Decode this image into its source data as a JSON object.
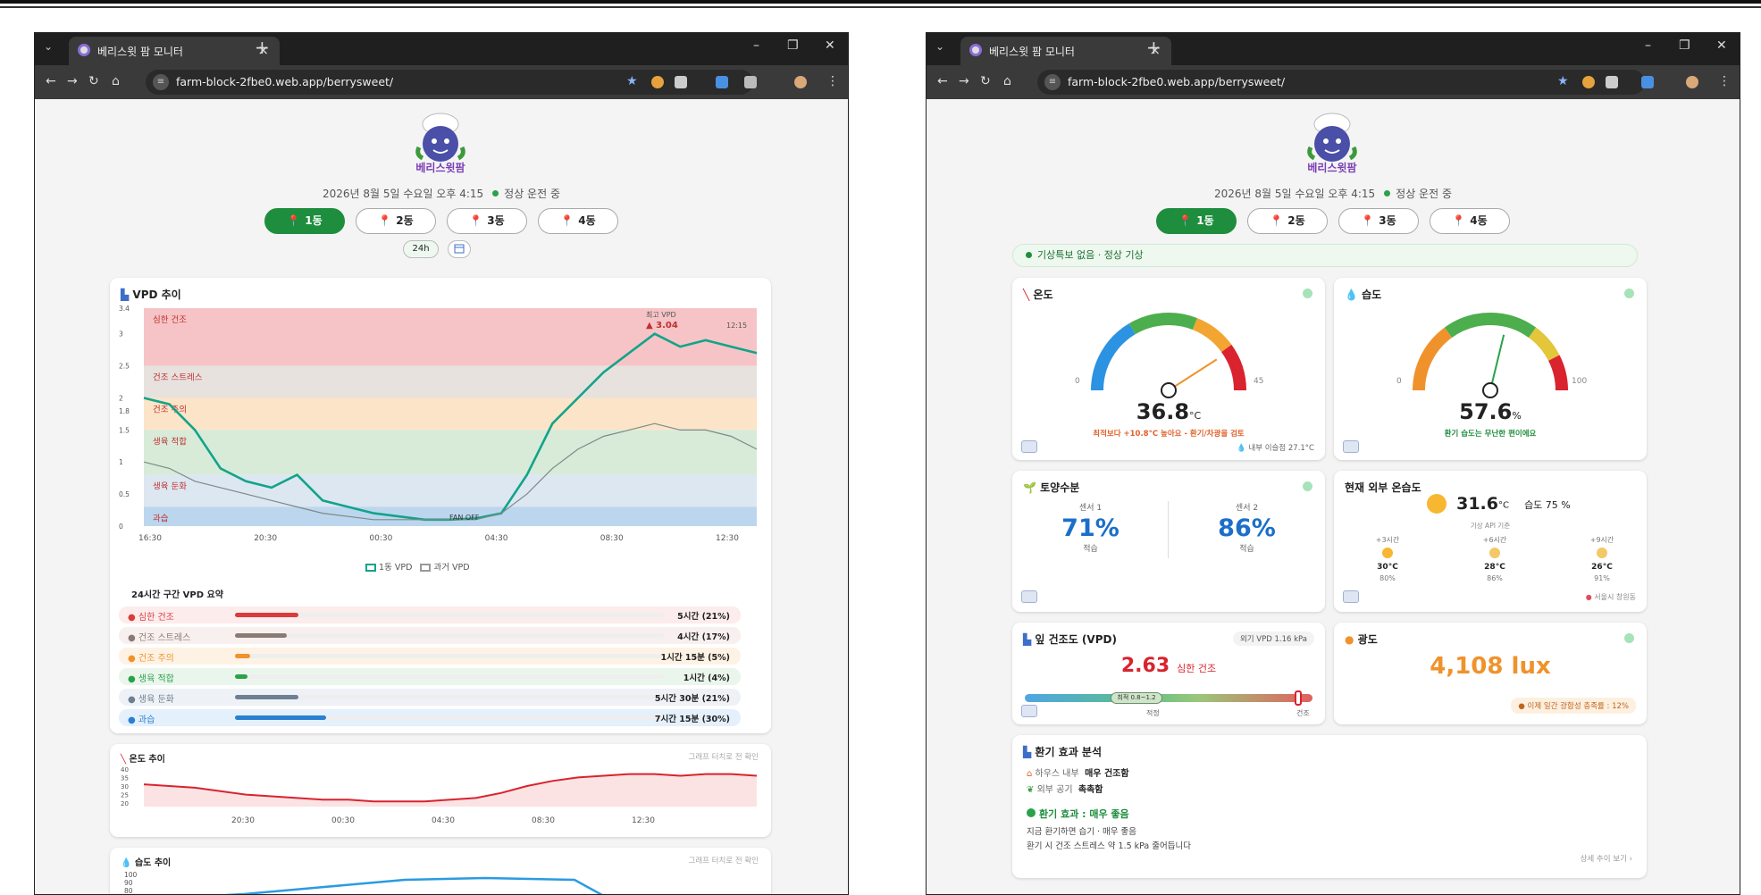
{
  "browser": {
    "tab_title": "베리스윗 팜 모니터",
    "url": "farm-block-2fbe0.web.app/berrysweet/"
  },
  "header": {
    "logo_text": "베리스윗팜",
    "date": "2026년 8월 5일 수요일 오후 4:15",
    "status": "정상 운전 중",
    "buildings": [
      "1동",
      "2동",
      "3동",
      "4동"
    ],
    "active_building": "1동"
  },
  "left": {
    "range_button": "24h",
    "vpd_card": {
      "title": "VPD 추이"
    },
    "chart_data": {
      "type": "line",
      "title": "VPD 추이",
      "x_ticks": [
        "16:30",
        "20:30",
        "00:30",
        "04:30",
        "08:30",
        "12:30"
      ],
      "ylim": [
        0,
        3.4
      ],
      "y_ticks": [
        "0",
        "0.5",
        "1",
        "1.5",
        "1.8",
        "2",
        "2.5",
        "3",
        "3.4"
      ],
      "zones": [
        {
          "label": "심한 건조",
          "from": 2.5,
          "to": 3.4,
          "color": "#f6c4c6"
        },
        {
          "label": "건조 스트레스",
          "from": 2.0,
          "to": 2.5,
          "color": "#e7e2de"
        },
        {
          "label": "건조 주의",
          "from": 1.5,
          "to": 2.0,
          "color": "#fbe4c8"
        },
        {
          "label": "생육 적합",
          "from": 0.8,
          "to": 1.5,
          "color": "#d8ebd9"
        },
        {
          "label": "생육 둔화",
          "from": 0.3,
          "to": 0.8,
          "color": "#dde7f1"
        },
        {
          "label": "과습",
          "from": 0,
          "to": 0.3,
          "color": "#bcd6ee"
        }
      ],
      "series": [
        {
          "name": "1동 VPD",
          "color": "#13a38a",
          "values": [
            2.0,
            1.9,
            1.5,
            0.9,
            0.7,
            0.6,
            0.8,
            0.4,
            0.3,
            0.2,
            0.15,
            0.1,
            0.1,
            0.12,
            0.2,
            0.8,
            1.6,
            2.0,
            2.4,
            2.7,
            3.0,
            2.8,
            2.9,
            2.8,
            2.7
          ]
        },
        {
          "name": "과거 VPD",
          "color": "#7c8a87",
          "values": [
            1.0,
            0.9,
            0.7,
            0.6,
            0.5,
            0.4,
            0.3,
            0.2,
            0.15,
            0.1,
            0.1,
            0.1,
            0.1,
            0.1,
            0.2,
            0.5,
            0.9,
            1.2,
            1.4,
            1.5,
            1.6,
            1.5,
            1.5,
            1.4,
            1.2
          ]
        }
      ],
      "peak_label": "최고 VPD",
      "peak_value": "3.04",
      "peak_time": "12:15",
      "fan_off_label": "FAN OFF"
    },
    "summary": {
      "title": "24시간 구간 VPD 요약",
      "rows": [
        {
          "label": "심한 건조",
          "value": "5시간 (21%)",
          "color": "#d93c3c",
          "bg": "#fdecec",
          "pct": 0.21
        },
        {
          "label": "건조 스트레스",
          "value": "4시간 (17%)",
          "color": "#8a7a74",
          "bg": "#f7f0ee",
          "pct": 0.17
        },
        {
          "label": "건조 주의",
          "value": "1시간 15분 (5%)",
          "color": "#f0922c",
          "bg": "#fef2e4",
          "pct": 0.05
        },
        {
          "label": "생육 적합",
          "value": "1시간 (4%)",
          "color": "#2aa24a",
          "bg": "#eaf6ec",
          "pct": 0.04
        },
        {
          "label": "생육 둔화",
          "value": "5시간 30분 (21%)",
          "color": "#6f7f93",
          "bg": "#eef2f6",
          "pct": 0.21
        },
        {
          "label": "과습",
          "value": "7시간 15분 (30%)",
          "color": "#2a7fd0",
          "bg": "#e4f0fb",
          "pct": 0.3
        }
      ]
    },
    "temp_card": {
      "title": "온도 추이",
      "note": "그래프 터치로 전 확인",
      "x_ticks": [
        "20:30",
        "00:30",
        "04:30",
        "08:30",
        "12:30"
      ],
      "y_ticks": [
        "40",
        "35",
        "30",
        "25",
        "20"
      ],
      "chart_data": {
        "type": "line",
        "ylim": [
          18,
          42
        ],
        "values": [
          31,
          30,
          29,
          27,
          25,
          24,
          23,
          22,
          22,
          21,
          21,
          21,
          22,
          23,
          26,
          30,
          33,
          35,
          36,
          37,
          37,
          36,
          37,
          37,
          36
        ]
      }
    },
    "humid_card": {
      "title": "습도 추이",
      "note": "그래프 터치로 전 확인",
      "y_ticks": [
        "100",
        "90",
        "80"
      ]
    }
  },
  "right": {
    "weather_alert": "기상특보 없음 · 정상 기상",
    "temp": {
      "title": "온도",
      "value": "36.8",
      "unit": "°C",
      "min": "0",
      "max": "45",
      "warn": "최적보다 +10.8°C 높아요 - 환기/차광을 검토",
      "inner": "내부 이슬점 27.1°C",
      "fraction": 0.818
    },
    "humid": {
      "title": "습도",
      "value": "57.6",
      "unit": "%",
      "min": "0",
      "max": "100",
      "note": "환기 습도는 무난한 편이에요",
      "fraction": 0.576
    },
    "soil": {
      "title": "토양수분",
      "s1_label": "센서 1",
      "s1": "71%",
      "s1_note": "적습",
      "s2_label": "센서 2",
      "s2": "86%",
      "s2_note": "적습"
    },
    "outdoor": {
      "title": "현재 외부 온습도",
      "temp": "31.6",
      "unit": "°C",
      "humid": "습도 75 %",
      "api": "기상 API 기준",
      "forecast": [
        {
          "h": "+3시간",
          "t": "30°C",
          "p": "80%"
        },
        {
          "h": "+6시간",
          "t": "28°C",
          "p": "86%"
        },
        {
          "h": "+9시간",
          "t": "26°C",
          "p": "91%"
        }
      ],
      "source": "서울시 창원동"
    },
    "vpd": {
      "title": "잎 건조도 (VPD)",
      "outer": "외기 VPD 1.16 kPa",
      "value": "2.63",
      "status": "심한 건조",
      "opt_label": "최적 0.8~1.2",
      "mid": "적정",
      "end": "건조",
      "fraction": 0.95
    },
    "light": {
      "title": "광도",
      "value": "4,108 lux",
      "note": "이제 일간 광합성 충족률 : 12%"
    },
    "vent": {
      "title": "환기 효과 분석",
      "inner_label": "하우스 내부",
      "inner_val": "매우 건조함",
      "outer_label": "외부 공기",
      "outer_val": "촉촉함",
      "effect": "환기 효과 : 매우 좋음",
      "line1": "지금 환기하면 습기 · 매우 좋음",
      "line2": "환기 시 건조 스트레스 약 1.5 kPa 줄어듭니다",
      "more": "상세 추이 보기 ›"
    }
  },
  "colors": {
    "green": "#1e8e3e",
    "red": "#d9232e",
    "blue": "#1b6fc8",
    "orange": "#f0922c"
  }
}
